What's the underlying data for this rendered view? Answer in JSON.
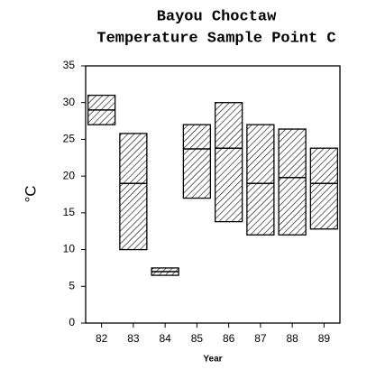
{
  "chart_data": {
    "type": "floating_bar",
    "title": "Bayou Choctaw",
    "subtitle": "Temperature Sample Point C",
    "xlabel": "Year",
    "ylabel": "°C",
    "categories": [
      "82",
      "83",
      "84",
      "85",
      "86",
      "87",
      "88",
      "89"
    ],
    "low": [
      27,
      10,
      6.5,
      17,
      13.8,
      12,
      12,
      12.8
    ],
    "high": [
      31,
      25.8,
      7.5,
      27,
      30,
      27,
      26.4,
      23.8
    ],
    "median": [
      29,
      19,
      7,
      23.7,
      23.8,
      19,
      19.8,
      19
    ],
    "color": "#000000",
    "ylim": [
      0,
      35
    ],
    "yticks": [
      0,
      5,
      10,
      15,
      20,
      25,
      30,
      35
    ]
  }
}
